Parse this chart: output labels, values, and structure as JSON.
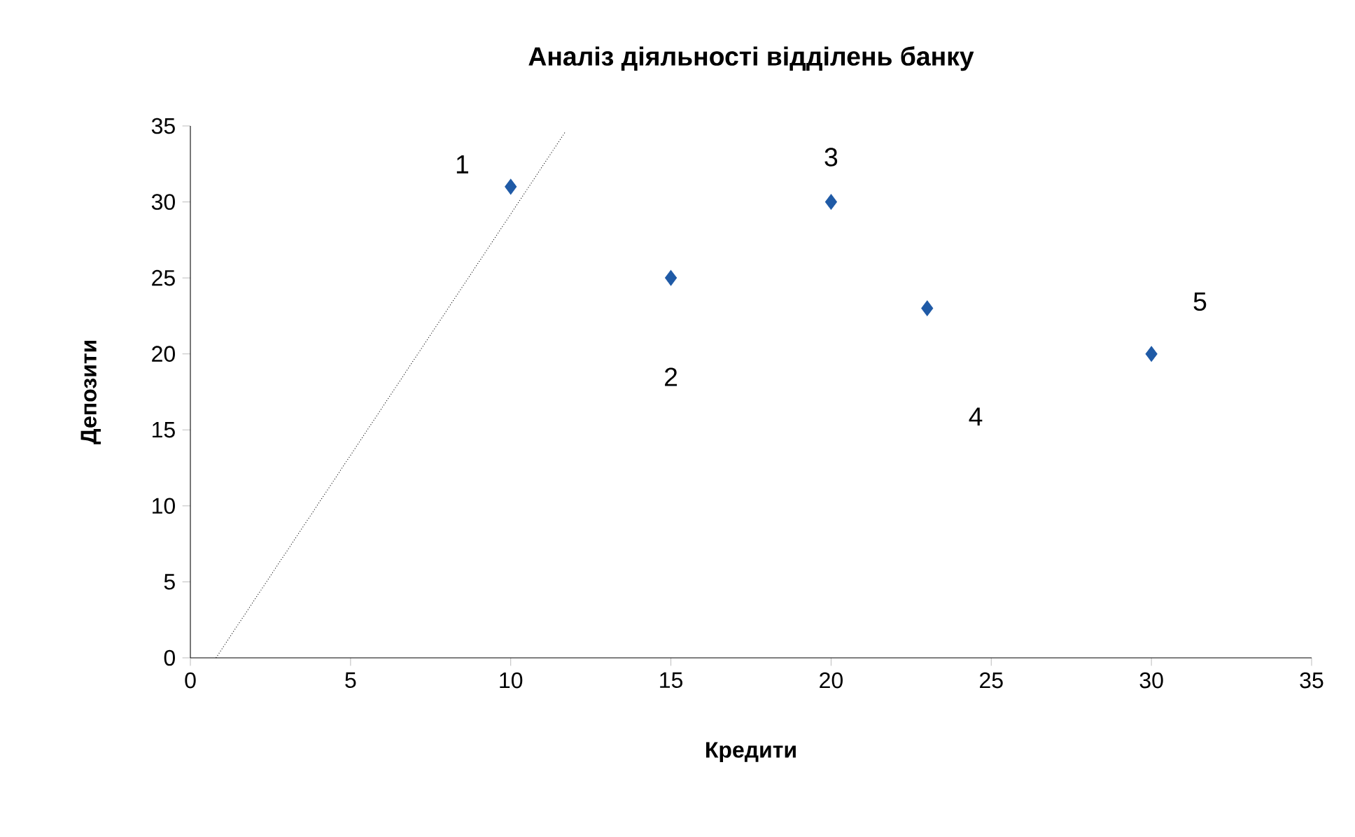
{
  "chart_data": {
    "type": "scatter",
    "title": "Аналіз діяльності відділень банку",
    "xlabel": "Кредити",
    "ylabel": "Депозити",
    "xlim": [
      0,
      35
    ],
    "xticks": [
      0,
      5,
      10,
      15,
      20,
      25,
      30,
      35
    ],
    "ylim": [
      0,
      35
    ],
    "yticks": [
      0,
      5,
      10,
      15,
      20,
      25,
      30,
      35
    ],
    "grid": false,
    "series": [
      {
        "color": "#1f5aa6",
        "marker": "diamond",
        "x": [
          10,
          15,
          20,
          23,
          30
        ],
        "values": [
          31,
          25,
          30,
          23,
          20
        ]
      },
      {
        "type": "line",
        "color": "#000000",
        "marker": "none",
        "line_style": "dotted",
        "x": [
          0.8,
          11.7
        ],
        "values": [
          0,
          34.6
        ]
      }
    ],
    "annotations": [
      "1",
      "2",
      "3",
      "4",
      "5"
    ]
  }
}
